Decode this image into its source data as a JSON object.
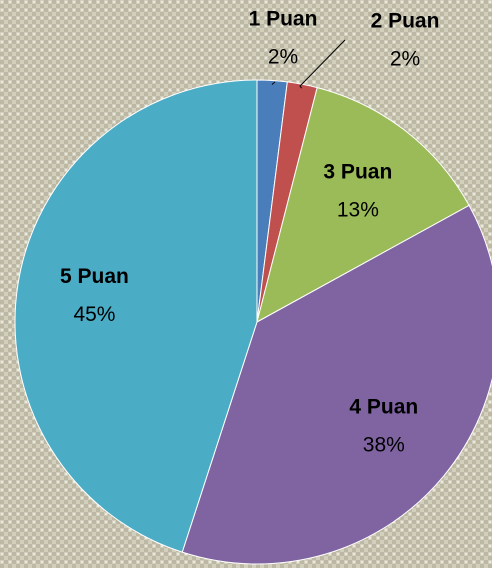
{
  "chart_data": {
    "type": "pie",
    "categories": [
      "1 Puan",
      "2 Puan",
      "3 Puan",
      "4 Puan",
      "5 Puan"
    ],
    "values": [
      2,
      2,
      13,
      38,
      45
    ],
    "value_labels": [
      "2%",
      "2%",
      "13%",
      "38%",
      "45%"
    ],
    "colors": [
      "#4a7ebb",
      "#c0504d",
      "#9bbb59",
      "#8064a2",
      "#4bacc6"
    ]
  }
}
